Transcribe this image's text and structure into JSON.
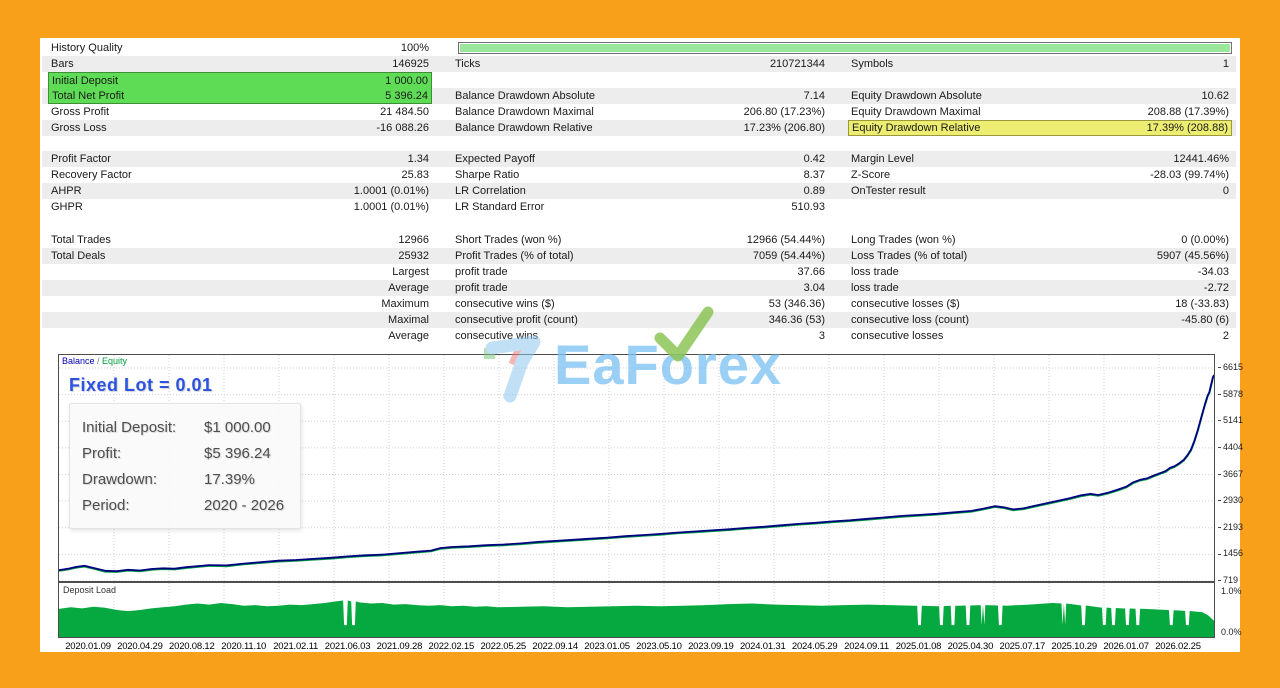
{
  "stats": {
    "history_quality_pct": 100,
    "rows": [
      {
        "progress": true,
        "shaded": false,
        "cells": [
          {
            "label": "History Quality",
            "value": "100%"
          }
        ]
      },
      {
        "shaded": true,
        "cells": [
          {
            "label": "Bars",
            "value": "146925"
          },
          {
            "label": "Ticks",
            "value": "210721344"
          },
          {
            "label": "Symbols",
            "value": "1"
          }
        ]
      },
      {
        "shaded": false,
        "cells": [
          {
            "label": "Initial Deposit",
            "value": "1 000.00",
            "hl": "hl-green-top"
          },
          {
            "label": "",
            "value": ""
          },
          {
            "label": "",
            "value": ""
          }
        ]
      },
      {
        "shaded": true,
        "cells": [
          {
            "label": "Total Net Profit",
            "value": "5 396.24",
            "hl": "hl-green-bottom"
          },
          {
            "label": "Balance Drawdown Absolute",
            "value": "7.14"
          },
          {
            "label": "Equity Drawdown Absolute",
            "value": "10.62"
          }
        ]
      },
      {
        "shaded": false,
        "cells": [
          {
            "label": "Gross Profit",
            "value": "21 484.50"
          },
          {
            "label": "Balance Drawdown Maximal",
            "value": "206.80 (17.23%)"
          },
          {
            "label": "Equity Drawdown Maximal",
            "value": "208.88 (17.39%)"
          }
        ]
      },
      {
        "shaded": true,
        "cells": [
          {
            "label": "Gross Loss",
            "value": "-16 088.26"
          },
          {
            "label": "Balance Drawdown Relative",
            "value": "17.23% (206.80)"
          },
          {
            "label": "Equity Drawdown Relative",
            "value": "17.39% (208.88)",
            "hl": "hl-yellow"
          }
        ]
      },
      {
        "spacer_before": 15,
        "shaded": true,
        "cells": [
          {
            "label": "Profit Factor",
            "value": "1.34"
          },
          {
            "label": "Expected Payoff",
            "value": "0.42"
          },
          {
            "label": "Margin Level",
            "value": "12441.46%"
          }
        ]
      },
      {
        "shaded": false,
        "cells": [
          {
            "label": "Recovery Factor",
            "value": "25.83"
          },
          {
            "label": "Sharpe Ratio",
            "value": "8.37"
          },
          {
            "label": "Z-Score",
            "value": "-28.03 (99.74%)"
          }
        ]
      },
      {
        "shaded": true,
        "cells": [
          {
            "label": "AHPR",
            "value": "1.0001 (0.01%)"
          },
          {
            "label": "LR Correlation",
            "value": "0.89"
          },
          {
            "label": "OnTester result",
            "value": "0"
          }
        ]
      },
      {
        "shaded": false,
        "cells": [
          {
            "label": "GHPR",
            "value": "1.0001 (0.01%)"
          },
          {
            "label": "LR Standard Error",
            "value": "510.93"
          },
          {
            "label": "",
            "value": ""
          }
        ]
      },
      {
        "spacer_before": 17,
        "shaded": false,
        "cells": [
          {
            "label": "Total Trades",
            "value": "12966"
          },
          {
            "label": "Short Trades (won %)",
            "value": "12966 (54.44%)"
          },
          {
            "label": "Long Trades (won %)",
            "value": "0 (0.00%)"
          }
        ]
      },
      {
        "shaded": true,
        "cells": [
          {
            "label": "Total Deals",
            "value": "25932"
          },
          {
            "label": "Profit Trades (% of total)",
            "value": "7059 (54.44%)"
          },
          {
            "label": "Loss Trades (% of total)",
            "value": "5907 (45.56%)"
          }
        ]
      },
      {
        "shaded": false,
        "cells": [
          {
            "label": "",
            "value": "Largest"
          },
          {
            "label": "profit trade",
            "value": "37.66"
          },
          {
            "label": "loss trade",
            "value": "-34.03"
          }
        ]
      },
      {
        "shaded": true,
        "cells": [
          {
            "label": "",
            "value": "Average"
          },
          {
            "label": "profit trade",
            "value": "3.04"
          },
          {
            "label": "loss trade",
            "value": "-2.72"
          }
        ]
      },
      {
        "shaded": false,
        "cells": [
          {
            "label": "",
            "value": "Maximum"
          },
          {
            "label": "consecutive wins ($)",
            "value": "53 (346.36)"
          },
          {
            "label": "consecutive losses ($)",
            "value": "18 (-33.83)"
          }
        ]
      },
      {
        "shaded": true,
        "cells": [
          {
            "label": "",
            "value": "Maximal"
          },
          {
            "label": "consecutive profit (count)",
            "value": "346.36 (53)"
          },
          {
            "label": "consecutive loss (count)",
            "value": "-45.80 (6)"
          }
        ]
      },
      {
        "shaded": false,
        "cells": [
          {
            "label": "",
            "value": "Average"
          },
          {
            "label": "consecutive wins",
            "value": "3"
          },
          {
            "label": "consecutive losses",
            "value": "2"
          }
        ]
      }
    ]
  },
  "main_chart": {
    "legend_balance": "Balance",
    "legend_sep": " / ",
    "legend_equity": "Equity",
    "title": "Fixed Lot = 0.01",
    "y_labels": [
      "6615",
      "5878",
      "5141",
      "4404",
      "3667",
      "2930",
      "2193",
      "1456",
      "719"
    ],
    "deposit_label": "Deposit Load",
    "pct_top": "1.0%",
    "pct_bottom": "0.0%"
  },
  "info_box": {
    "rows": [
      {
        "label": "Initial Deposit:",
        "value": "$1 000.00"
      },
      {
        "label": "Profit:",
        "value": "$5 396.24"
      },
      {
        "label": "Drawdown:",
        "value": "17.39%"
      },
      {
        "label": "Period:",
        "value": "2020 - 2026"
      }
    ]
  },
  "watermark": {
    "text": "EaForex"
  },
  "dates": [
    "2020.01.09",
    "2020.04.29",
    "2020.08.12",
    "2020.11.10",
    "2021.02.11",
    "2021.06.03",
    "2021.09.28",
    "2022.02.15",
    "2022.05.25",
    "2022.09.14",
    "2023.01.05",
    "2023.05.10",
    "2023.09.19",
    "2024.01.31",
    "2024.05.29",
    "2024.09.11",
    "2025.01.08",
    "2025.04.30",
    "2025.07.17",
    "2025.10.29",
    "2026.01.07",
    "2026.02.25"
  ],
  "chart_data": [
    {
      "type": "line",
      "title": "Balance / Equity curve",
      "ylim": [
        719,
        6975
      ],
      "y_ticks": [
        6615,
        5878,
        5141,
        4404,
        3667,
        2930,
        2193,
        1456,
        719
      ],
      "x_ticks": [
        "2020.01.09",
        "2026.02.25"
      ],
      "series": [
        {
          "name": "Balance",
          "color": "#000080"
        },
        {
          "name": "Equity",
          "color": "#00A040",
          "value_offset": -20
        }
      ],
      "points": [
        [
          0.0,
          1020
        ],
        [
          0.008,
          1060
        ],
        [
          0.015,
          1110
        ],
        [
          0.022,
          1140
        ],
        [
          0.03,
          1080
        ],
        [
          0.04,
          1000
        ],
        [
          0.05,
          990
        ],
        [
          0.06,
          1030
        ],
        [
          0.07,
          1010
        ],
        [
          0.08,
          1050
        ],
        [
          0.09,
          1070
        ],
        [
          0.1,
          1060
        ],
        [
          0.11,
          1100
        ],
        [
          0.12,
          1130
        ],
        [
          0.13,
          1160
        ],
        [
          0.145,
          1150
        ],
        [
          0.16,
          1200
        ],
        [
          0.175,
          1240
        ],
        [
          0.19,
          1280
        ],
        [
          0.205,
          1300
        ],
        [
          0.22,
          1330
        ],
        [
          0.235,
          1360
        ],
        [
          0.25,
          1400
        ],
        [
          0.265,
          1430
        ],
        [
          0.28,
          1450
        ],
        [
          0.295,
          1490
        ],
        [
          0.31,
          1530
        ],
        [
          0.322,
          1560
        ],
        [
          0.33,
          1630
        ],
        [
          0.34,
          1660
        ],
        [
          0.355,
          1680
        ],
        [
          0.37,
          1710
        ],
        [
          0.385,
          1730
        ],
        [
          0.4,
          1760
        ],
        [
          0.415,
          1800
        ],
        [
          0.43,
          1830
        ],
        [
          0.445,
          1860
        ],
        [
          0.46,
          1890
        ],
        [
          0.475,
          1920
        ],
        [
          0.49,
          1960
        ],
        [
          0.505,
          1990
        ],
        [
          0.52,
          2020
        ],
        [
          0.535,
          2060
        ],
        [
          0.55,
          2090
        ],
        [
          0.565,
          2120
        ],
        [
          0.58,
          2150
        ],
        [
          0.595,
          2190
        ],
        [
          0.61,
          2220
        ],
        [
          0.625,
          2260
        ],
        [
          0.64,
          2300
        ],
        [
          0.655,
          2330
        ],
        [
          0.67,
          2370
        ],
        [
          0.685,
          2400
        ],
        [
          0.7,
          2440
        ],
        [
          0.715,
          2480
        ],
        [
          0.73,
          2520
        ],
        [
          0.745,
          2550
        ],
        [
          0.76,
          2580
        ],
        [
          0.775,
          2620
        ],
        [
          0.79,
          2660
        ],
        [
          0.8,
          2720
        ],
        [
          0.81,
          2790
        ],
        [
          0.818,
          2760
        ],
        [
          0.826,
          2700
        ],
        [
          0.835,
          2730
        ],
        [
          0.845,
          2800
        ],
        [
          0.855,
          2870
        ],
        [
          0.865,
          2940
        ],
        [
          0.875,
          3010
        ],
        [
          0.885,
          3090
        ],
        [
          0.893,
          3130
        ],
        [
          0.9,
          3100
        ],
        [
          0.908,
          3160
        ],
        [
          0.916,
          3240
        ],
        [
          0.924,
          3330
        ],
        [
          0.93,
          3450
        ],
        [
          0.936,
          3520
        ],
        [
          0.942,
          3560
        ],
        [
          0.948,
          3640
        ],
        [
          0.953,
          3700
        ],
        [
          0.958,
          3760
        ],
        [
          0.962,
          3850
        ],
        [
          0.966,
          3900
        ],
        [
          0.97,
          3980
        ],
        [
          0.974,
          4080
        ],
        [
          0.977,
          4200
        ],
        [
          0.98,
          4350
        ],
        [
          0.983,
          4600
        ],
        [
          0.986,
          4900
        ],
        [
          0.989,
          5250
        ],
        [
          0.992,
          5600
        ],
        [
          0.9945,
          5850
        ],
        [
          0.996,
          5950
        ],
        [
          0.9975,
          6150
        ],
        [
          0.999,
          6350
        ],
        [
          1.0,
          6420
        ]
      ]
    },
    {
      "type": "area",
      "title": "Deposit Load",
      "color": "#05A93F",
      "ylim_pct": [
        0.0,
        1.0
      ],
      "notch_depth": 0.22,
      "notches": [
        0.248,
        0.255,
        0.745,
        0.764,
        0.774,
        0.787,
        0.8,
        0.815,
        0.87,
        0.887,
        0.905,
        0.913,
        0.925,
        0.934,
        0.963,
        0.977
      ],
      "points": [
        [
          0.0,
          0.52
        ],
        [
          0.01,
          0.55
        ],
        [
          0.02,
          0.53
        ],
        [
          0.03,
          0.56
        ],
        [
          0.04,
          0.54
        ],
        [
          0.05,
          0.5
        ],
        [
          0.06,
          0.48
        ],
        [
          0.07,
          0.5
        ],
        [
          0.08,
          0.53
        ],
        [
          0.09,
          0.55
        ],
        [
          0.1,
          0.57
        ],
        [
          0.11,
          0.6
        ],
        [
          0.12,
          0.62
        ],
        [
          0.13,
          0.6
        ],
        [
          0.14,
          0.63
        ],
        [
          0.15,
          0.61
        ],
        [
          0.16,
          0.58
        ],
        [
          0.17,
          0.59
        ],
        [
          0.18,
          0.57
        ],
        [
          0.19,
          0.58
        ],
        [
          0.2,
          0.6
        ],
        [
          0.21,
          0.59
        ],
        [
          0.22,
          0.61
        ],
        [
          0.23,
          0.63
        ],
        [
          0.24,
          0.66
        ],
        [
          0.25,
          0.68
        ],
        [
          0.26,
          0.64
        ],
        [
          0.27,
          0.62
        ],
        [
          0.28,
          0.63
        ],
        [
          0.29,
          0.6
        ],
        [
          0.3,
          0.61
        ],
        [
          0.31,
          0.59
        ],
        [
          0.32,
          0.58
        ],
        [
          0.33,
          0.59
        ],
        [
          0.34,
          0.57
        ],
        [
          0.35,
          0.58
        ],
        [
          0.36,
          0.56
        ],
        [
          0.37,
          0.57
        ],
        [
          0.38,
          0.55
        ],
        [
          0.4,
          0.56
        ],
        [
          0.42,
          0.57
        ],
        [
          0.44,
          0.55
        ],
        [
          0.46,
          0.56
        ],
        [
          0.48,
          0.57
        ],
        [
          0.5,
          0.58
        ],
        [
          0.52,
          0.57
        ],
        [
          0.54,
          0.58
        ],
        [
          0.56,
          0.59
        ],
        [
          0.58,
          0.61
        ],
        [
          0.6,
          0.62
        ],
        [
          0.62,
          0.6
        ],
        [
          0.64,
          0.59
        ],
        [
          0.66,
          0.58
        ],
        [
          0.68,
          0.59
        ],
        [
          0.7,
          0.6
        ],
        [
          0.72,
          0.59
        ],
        [
          0.74,
          0.58
        ],
        [
          0.76,
          0.57
        ],
        [
          0.78,
          0.58
        ],
        [
          0.8,
          0.59
        ],
        [
          0.82,
          0.58
        ],
        [
          0.84,
          0.6
        ],
        [
          0.86,
          0.63
        ],
        [
          0.87,
          0.62
        ],
        [
          0.88,
          0.6
        ],
        [
          0.9,
          0.55
        ],
        [
          0.92,
          0.53
        ],
        [
          0.94,
          0.52
        ],
        [
          0.96,
          0.5
        ],
        [
          0.97,
          0.49
        ],
        [
          0.98,
          0.48
        ],
        [
          0.99,
          0.46
        ],
        [
          0.995,
          0.4
        ],
        [
          1.0,
          0.3
        ]
      ]
    }
  ]
}
